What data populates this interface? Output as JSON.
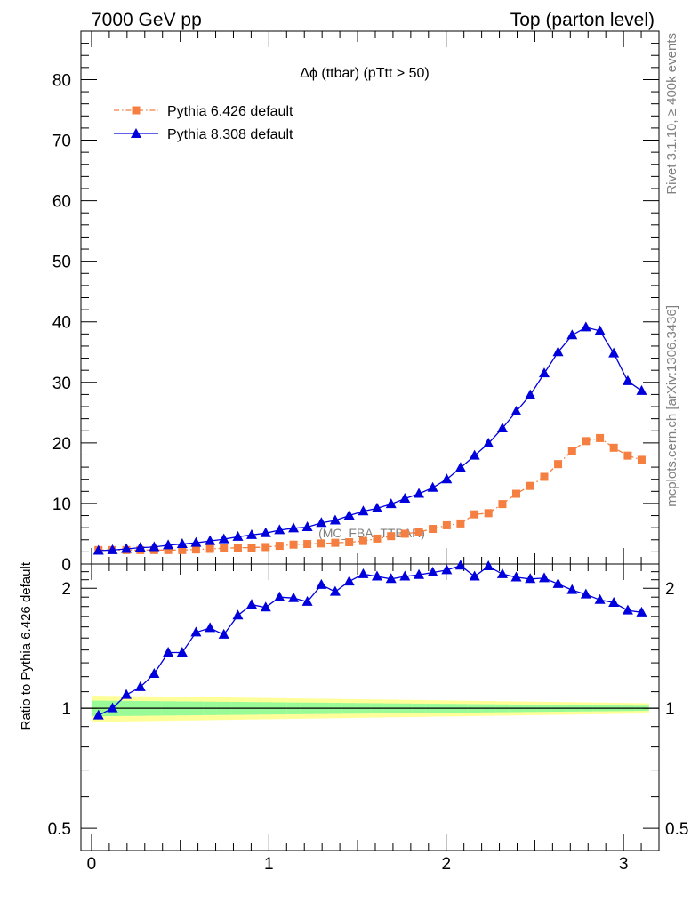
{
  "header": {
    "left": "7000 GeV pp",
    "right": "Top (parton level)"
  },
  "side": {
    "rivet": "Rivet 3.1.10, ≥ 400k events",
    "mcplots": "mcplots.cern.ch [arXiv:1306.3436]"
  },
  "chart_data": [
    {
      "type": "line",
      "panel": "main",
      "title": "Δϕ (ttbar) (pTtt > 50)",
      "watermark": "(MC_FBA_TTBAR)",
      "xlabel": "",
      "ylabel": "",
      "xlim": [
        -0.06,
        3.2
      ],
      "ylim": [
        0,
        88
      ],
      "y_ticks": [
        0,
        10,
        20,
        30,
        40,
        50,
        60,
        70,
        80
      ],
      "legend_position": "top-left",
      "x": [
        0.039,
        0.118,
        0.196,
        0.275,
        0.353,
        0.432,
        0.511,
        0.589,
        0.668,
        0.746,
        0.825,
        0.903,
        0.982,
        1.06,
        1.139,
        1.217,
        1.296,
        1.374,
        1.453,
        1.532,
        1.61,
        1.689,
        1.767,
        1.846,
        1.924,
        2.003,
        2.081,
        2.16,
        2.238,
        2.317,
        2.395,
        2.474,
        2.553,
        2.631,
        2.71,
        2.788,
        2.867,
        2.945,
        3.024,
        3.102
      ],
      "series": [
        {
          "name": "Pythia 6.426 default",
          "color": "#f57f40",
          "marker": "square",
          "line": "dash-dot",
          "values": [
            2.3,
            2.3,
            2.3,
            2.3,
            2.3,
            2.3,
            2.3,
            2.4,
            2.5,
            2.6,
            2.7,
            2.7,
            2.8,
            3.0,
            3.2,
            3.3,
            3.4,
            3.5,
            3.6,
            3.8,
            4.2,
            4.6,
            5.0,
            5.3,
            5.8,
            6.4,
            6.7,
            8.2,
            8.4,
            9.9,
            11.6,
            12.9,
            14.4,
            16.5,
            18.7,
            20.3,
            20.8,
            19.2,
            17.9,
            17.2
          ]
        },
        {
          "name": "Pythia 8.308 default",
          "color": "#0000dd",
          "marker": "triangle",
          "line": "solid",
          "values": [
            2.2,
            2.3,
            2.5,
            2.7,
            2.8,
            3.1,
            3.3,
            3.5,
            3.8,
            4.1,
            4.5,
            4.8,
            5.1,
            5.6,
            5.9,
            6.1,
            6.8,
            7.2,
            8.0,
            8.7,
            9.2,
            9.9,
            10.8,
            11.6,
            12.6,
            14.0,
            15.9,
            17.9,
            19.9,
            22.4,
            25.2,
            27.9,
            31.5,
            35.0,
            37.8,
            39.1,
            38.5,
            34.8,
            30.2,
            28.6
          ]
        }
      ]
    },
    {
      "type": "line",
      "panel": "ratio",
      "ylabel": "Ratio to Pythia 6.426 default",
      "xlim": [
        -0.06,
        3.2
      ],
      "ylim": [
        0.44,
        2.3
      ],
      "y_scale": "log",
      "y_ticks": [
        0.5,
        1,
        2
      ],
      "y_tick_labels": [
        "0.5",
        "1",
        "2"
      ],
      "x_ticks": [
        0,
        1,
        2,
        3
      ],
      "x_tick_labels": [
        "0",
        "1",
        "2",
        "3"
      ],
      "reference": 1.0,
      "band_colors": [
        "#ffff99",
        "#98fb98"
      ],
      "x": [
        0.039,
        0.118,
        0.196,
        0.275,
        0.353,
        0.432,
        0.511,
        0.589,
        0.668,
        0.746,
        0.825,
        0.903,
        0.982,
        1.06,
        1.139,
        1.217,
        1.296,
        1.374,
        1.453,
        1.532,
        1.61,
        1.689,
        1.767,
        1.846,
        1.924,
        2.003,
        2.081,
        2.16,
        2.238,
        2.317,
        2.395,
        2.474,
        2.553,
        2.631,
        2.71,
        2.788,
        2.867,
        2.945,
        3.024,
        3.102
      ],
      "series": [
        {
          "name": "Pythia 8.308 default",
          "color": "#0000dd",
          "marker": "triangle",
          "values": [
            0.96,
            1.0,
            1.08,
            1.13,
            1.22,
            1.38,
            1.38,
            1.55,
            1.59,
            1.53,
            1.71,
            1.82,
            1.79,
            1.9,
            1.89,
            1.85,
            2.04,
            1.96,
            2.08,
            2.17,
            2.14,
            2.11,
            2.14,
            2.16,
            2.19,
            2.22,
            2.28,
            2.14,
            2.27,
            2.17,
            2.13,
            2.11,
            2.12,
            2.05,
            1.98,
            1.93,
            1.87,
            1.84,
            1.76,
            1.74
          ]
        }
      ]
    }
  ]
}
